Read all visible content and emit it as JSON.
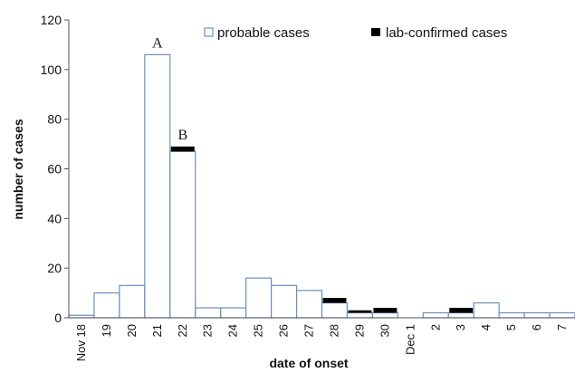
{
  "chart_data": {
    "type": "bar",
    "xlabel": "date of onset",
    "ylabel": "number of cases",
    "ylim": [
      0,
      120
    ],
    "yticks": [
      0,
      20,
      40,
      60,
      80,
      100,
      120
    ],
    "grid": false,
    "legend_position": "top-right",
    "categories": [
      "Nov 18",
      "19",
      "20",
      "21",
      "22",
      "23",
      "24",
      "25",
      "26",
      "27",
      "28",
      "29",
      "30",
      "Dec 1",
      "2",
      "3",
      "4",
      "5",
      "6",
      "7"
    ],
    "series": [
      {
        "name": "probable cases",
        "color": "#ffffff",
        "border_color": "#6a8fbd",
        "values": [
          1,
          10,
          13,
          106,
          67,
          4,
          4,
          16,
          13,
          11,
          6,
          2,
          2,
          0,
          2,
          2,
          6,
          2,
          2,
          2
        ]
      },
      {
        "name": "lab-confirmed cases",
        "color": "#000000",
        "values": [
          0,
          0,
          0,
          0,
          2,
          0,
          0,
          0,
          0,
          0,
          2,
          1,
          2,
          0,
          0,
          2,
          0,
          0,
          0,
          0
        ]
      }
    ],
    "annotations": [
      {
        "text": "A",
        "category": "21"
      },
      {
        "text": "B",
        "category": "22"
      }
    ]
  }
}
